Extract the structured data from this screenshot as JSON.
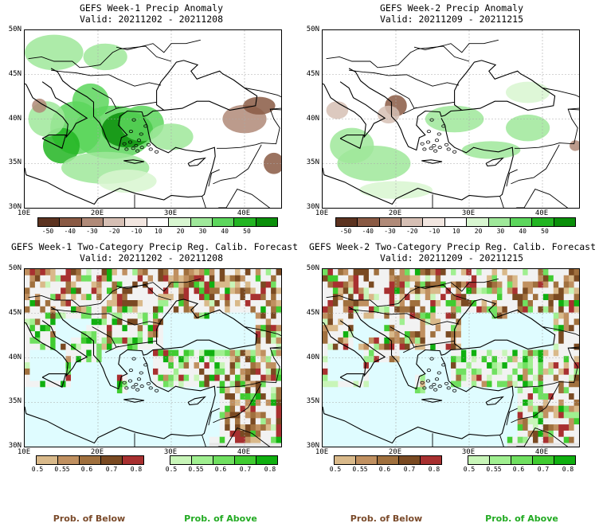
{
  "panels": [
    {
      "title": "GEFS Week-1 Precip Anomaly",
      "valid": "Valid: 20211202 - 20211208",
      "kind": "anomaly",
      "lat_ticks": [
        "50N",
        "45N",
        "40N",
        "35N",
        "30N"
      ],
      "lon_ticks": [
        "10E",
        "20E",
        "30E",
        "40E"
      ],
      "colorbar_labels": [
        "-50",
        "-40",
        "-30",
        "-20",
        "-10",
        "10",
        "20",
        "30",
        "40",
        "50"
      ]
    },
    {
      "title": "GEFS Week-2 Precip Anomaly",
      "valid": "Valid: 20211209 - 20211215",
      "kind": "anomaly",
      "lat_ticks": [
        "50N",
        "45N",
        "40N",
        "35N",
        "30N"
      ],
      "lon_ticks": [
        "10E",
        "20E",
        "30E",
        "40E"
      ],
      "colorbar_labels": [
        "-50",
        "-40",
        "-30",
        "-20",
        "-10",
        "10",
        "20",
        "30",
        "40",
        "50"
      ]
    },
    {
      "title": "GEFS Week-1 Two-Category Precip Reg. Calib. Forecast",
      "valid": "Valid: 20211202 - 20211208",
      "kind": "probability",
      "lat_ticks": [
        "50N",
        "45N",
        "40N",
        "35N",
        "30N"
      ],
      "lon_ticks": [
        "10E",
        "20E",
        "30E",
        "40E"
      ],
      "below_labels": [
        "0.5",
        "0.55",
        "0.6",
        "0.7",
        "0.8"
      ],
      "above_labels": [
        "0.5",
        "0.55",
        "0.6",
        "0.7",
        "0.8"
      ]
    },
    {
      "title": "GEFS Week-2 Two-Category Precip Reg. Calib. Forecast",
      "valid": "Valid: 20211209 - 20211215",
      "kind": "probability",
      "lat_ticks": [
        "50N",
        "45N",
        "40N",
        "35N",
        "30N"
      ],
      "lon_ticks": [
        "10E",
        "20E",
        "30E",
        "40E"
      ],
      "below_labels": [
        "0.5",
        "0.55",
        "0.6",
        "0.7",
        "0.8"
      ],
      "above_labels": [
        "0.5",
        "0.55",
        "0.6",
        "0.7",
        "0.8"
      ]
    }
  ],
  "legend": {
    "below": "Prob. of Below",
    "above": "Prob. of Above",
    "below_color": "#7a4a2a",
    "above_color": "#22aa22"
  },
  "colors": {
    "anomaly_scale": [
      "#5c3320",
      "#8a5a44",
      "#b08a78",
      "#d6bfb4",
      "#f2e6e0",
      "#ffffff",
      "#d8f6d0",
      "#9fe89a",
      "#5cd65c",
      "#22b522",
      "#0a8f0a"
    ],
    "below_scale": [
      "#d9b98a",
      "#c09060",
      "#a0703e",
      "#7a4a22",
      "#a83030"
    ],
    "above_scale": [
      "#c8f5b8",
      "#a0ef90",
      "#70e060",
      "#40cc30",
      "#10b010"
    ],
    "sea": "#dffcff",
    "land_missing": "#e6e6e6"
  }
}
